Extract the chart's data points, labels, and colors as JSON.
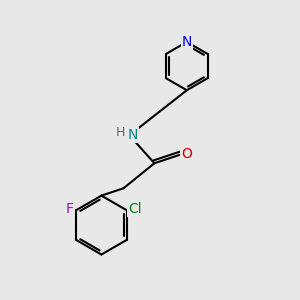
{
  "background_color": "#e8e8e8",
  "bond_color": "#000000",
  "bond_width": 1.5,
  "atom_colors": {
    "N_pyridine": "#0000cc",
    "N_amide": "#008888",
    "O": "#cc0000",
    "F": "#bb00bb",
    "Cl": "#008800",
    "H": "#666666",
    "C": "#000000"
  },
  "font_size_atom": 10,
  "font_size_H": 9,
  "font_size_Cl": 10
}
